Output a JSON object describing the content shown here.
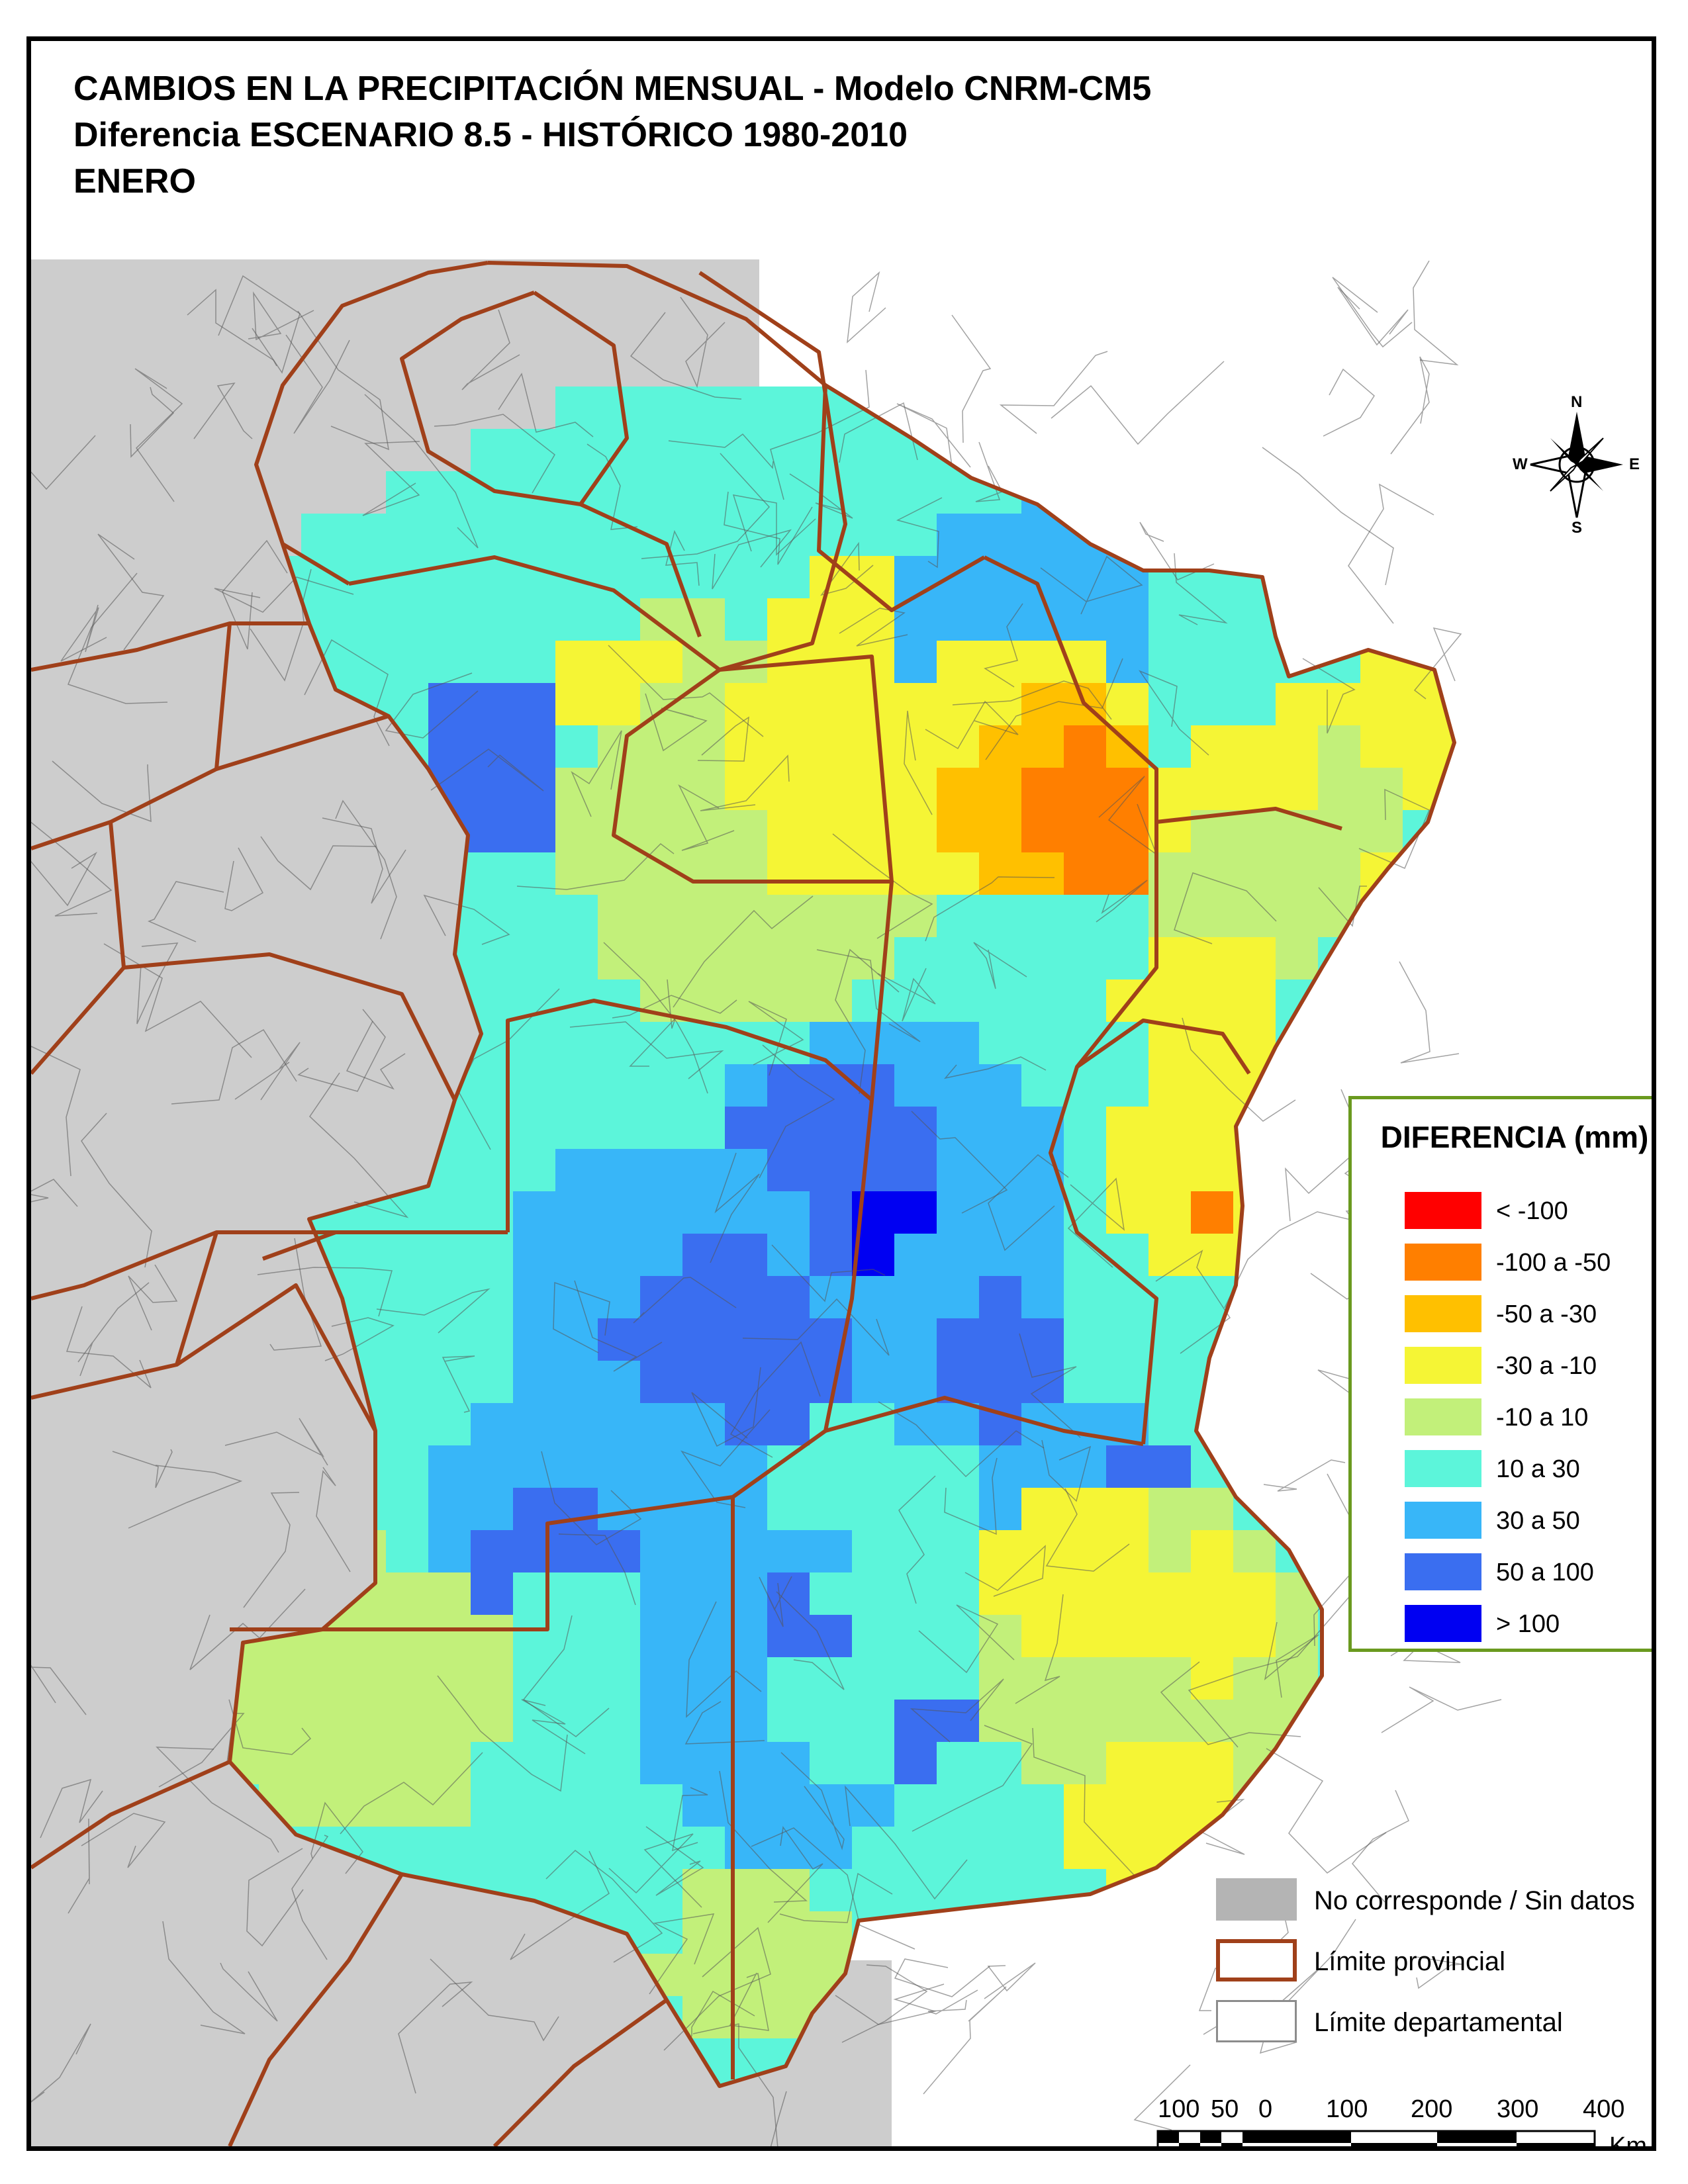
{
  "title": {
    "line1": "CAMBIOS EN LA PRECIPITACIÓN MENSUAL - Modelo CNRM-CM5",
    "line2": "Diferencia ESCENARIO 8.5 - HISTÓRICO 1980-2010",
    "line3": "ENERO"
  },
  "legend": {
    "title": "DIFERENCIA (mm)",
    "classes": [
      {
        "label": "< -100",
        "color": "#ff0000"
      },
      {
        "label": "-100 a -50",
        "color": "#ff7f00"
      },
      {
        "label": "-50 a -30",
        "color": "#ffc000"
      },
      {
        "label": "-30 a -10",
        "color": "#f5f535"
      },
      {
        "label": "-10 a 10",
        "color": "#c2f07a"
      },
      {
        "label": "10 a 30",
        "color": "#5cf5da"
      },
      {
        "label": "30 a 50",
        "color": "#38b6f8"
      },
      {
        "label": "50 a 100",
        "color": "#3a6ef0"
      },
      {
        "label": "> 100",
        "color": "#0000f2"
      }
    ]
  },
  "extra_legend": [
    {
      "label": "No corresponde / Sin datos",
      "kind": "fill",
      "color": "#b4b4b4"
    },
    {
      "label": "Límite provincial",
      "kind": "outline",
      "color": "#a0401a"
    },
    {
      "label": "Límite departamental",
      "kind": "outline",
      "color": "#8c8c8c"
    }
  ],
  "north_arrow": {
    "n": "N",
    "s": "S",
    "e": "E",
    "w": "W"
  },
  "scale_bar": {
    "ticks": [
      "100",
      "50",
      "0",
      "100",
      "200",
      "300",
      "400"
    ],
    "unit": "Km"
  },
  "colors": {
    "province_border": "#a0401a",
    "no_data": "#cdcdcd",
    "department_line": "#555555"
  }
}
